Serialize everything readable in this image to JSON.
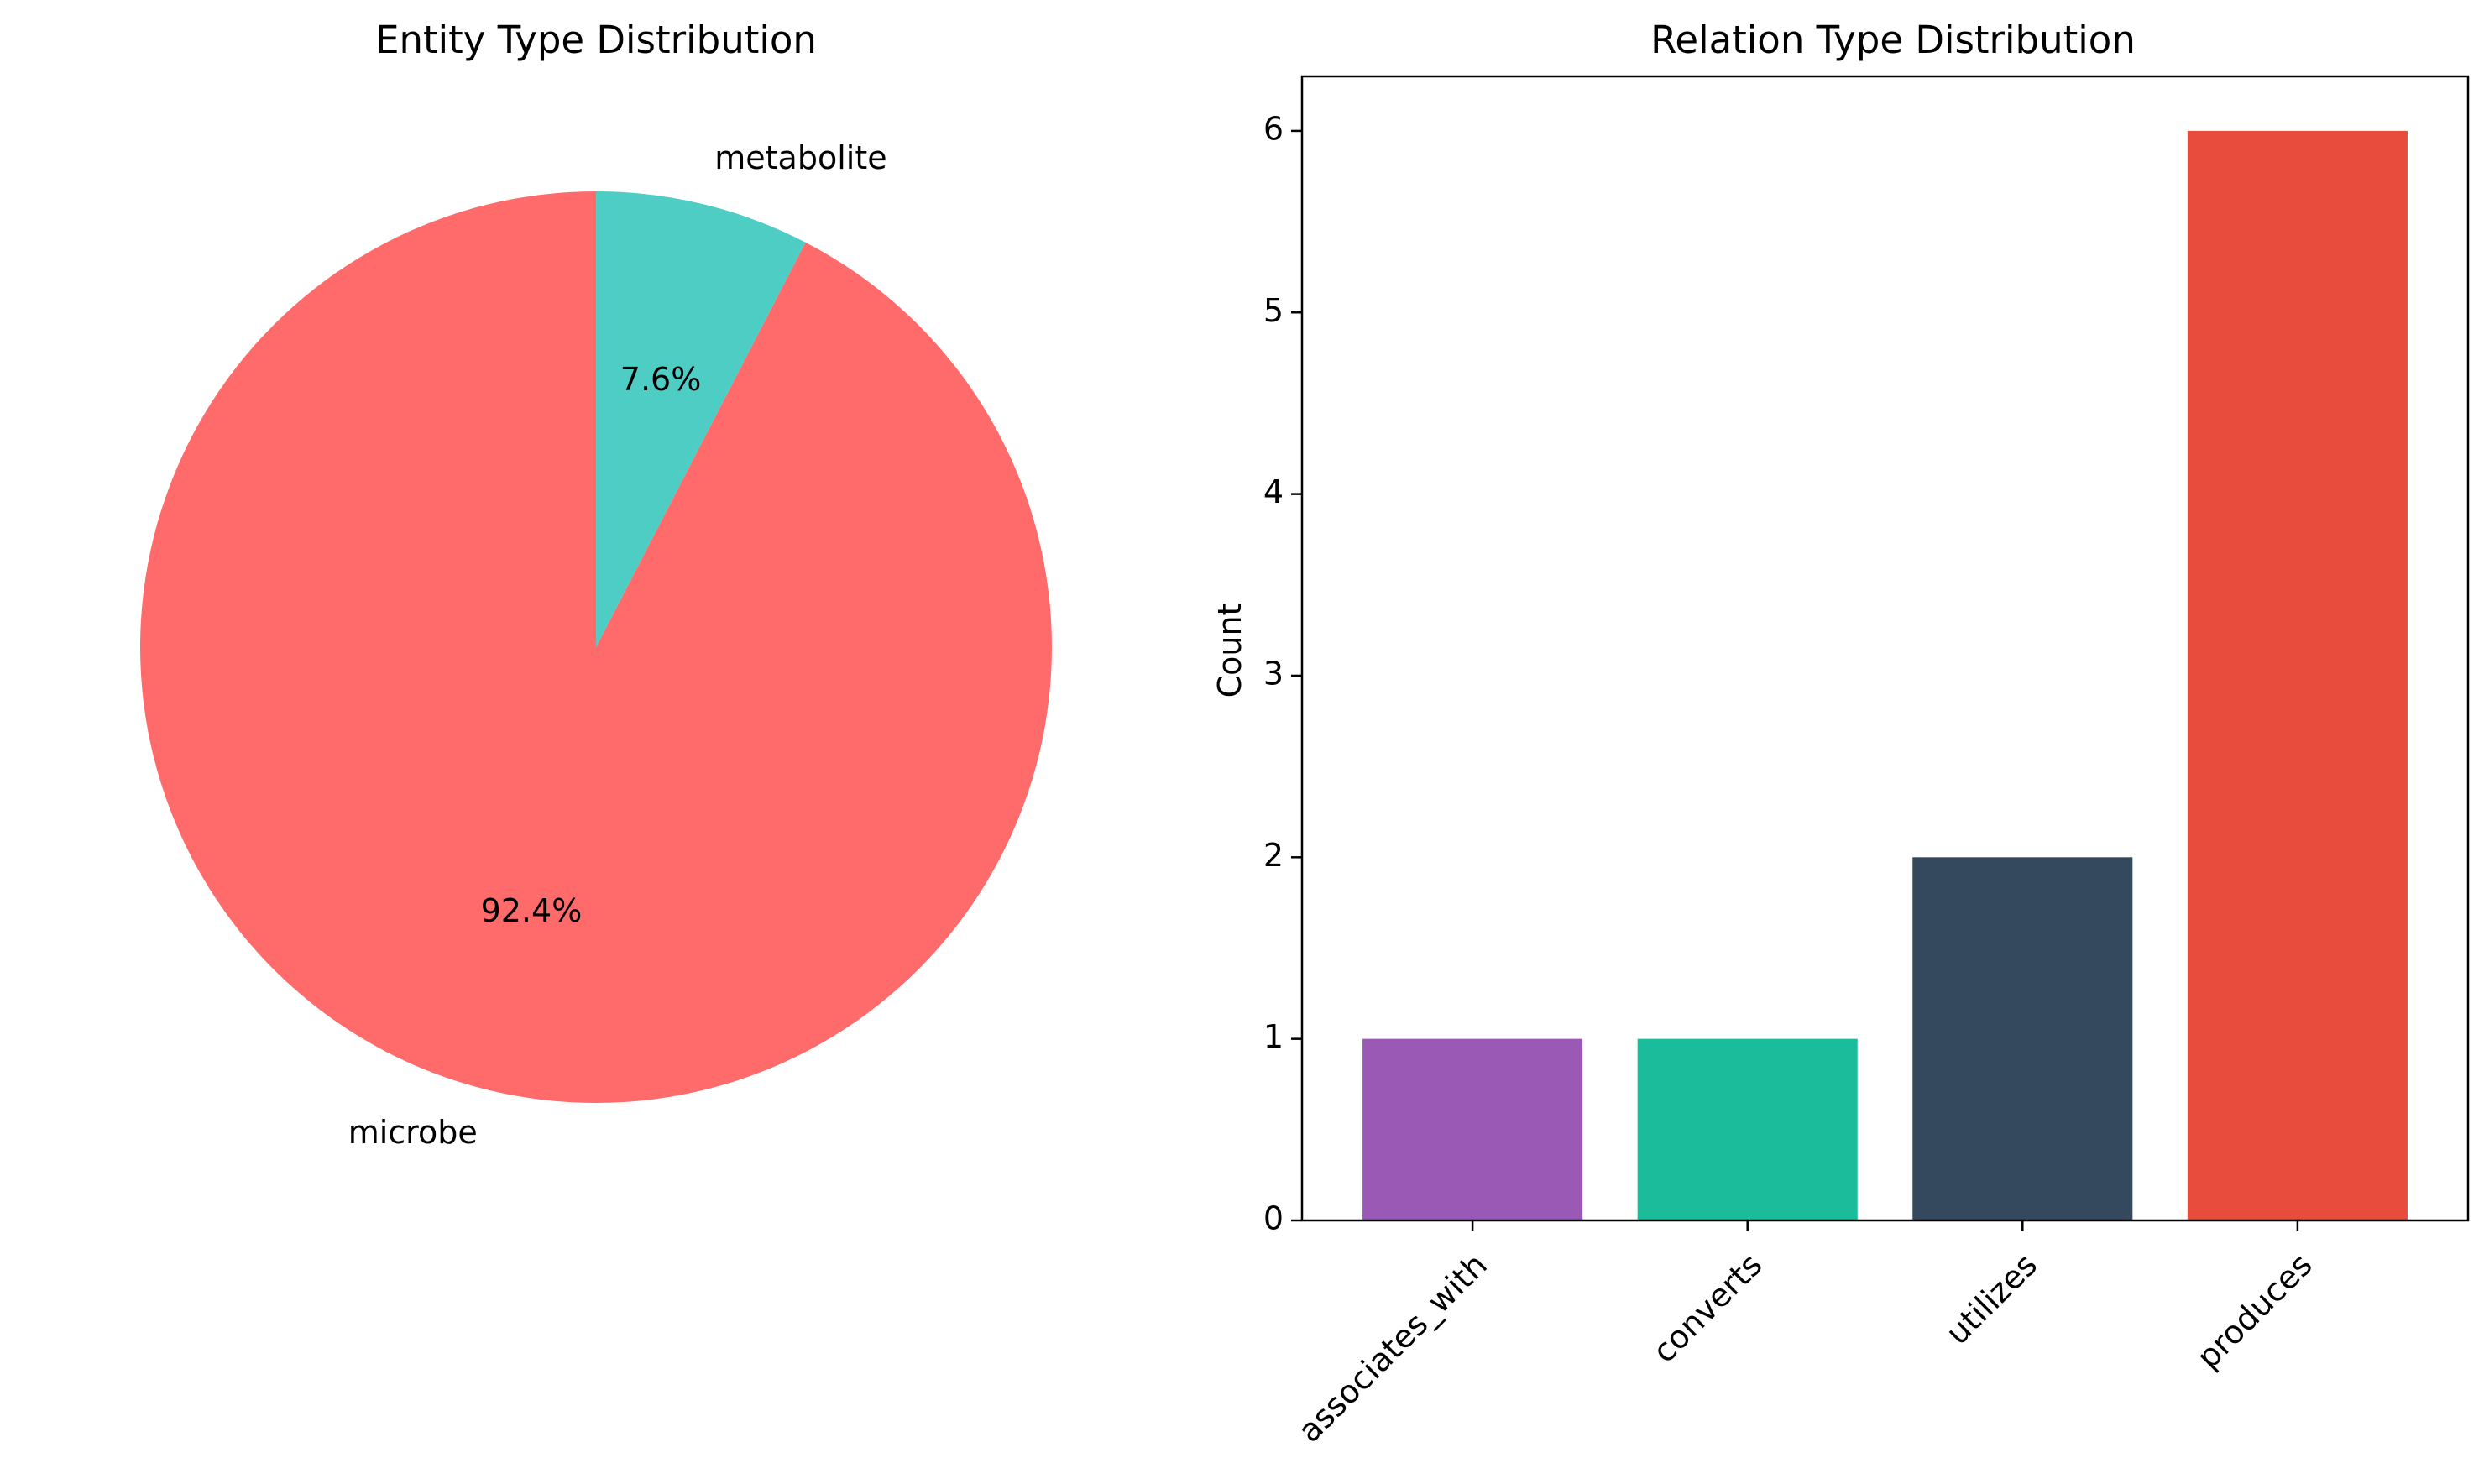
{
  "chart_data": [
    {
      "type": "pie",
      "title": "Entity Type Distribution",
      "labels": [
        "microbe",
        "metabolite"
      ],
      "values": [
        92.4,
        7.6
      ],
      "pct_labels": [
        "92.4%",
        "7.6%"
      ],
      "colors": [
        "#ff6b6b",
        "#4ecdc4"
      ]
    },
    {
      "type": "bar",
      "title": "Relation Type Distribution",
      "categories": [
        "associates_with",
        "converts",
        "utilizes",
        "produces"
      ],
      "values": [
        1,
        1,
        2,
        6
      ],
      "colors": [
        "#9b59b6",
        "#1abc9c",
        "#34495e",
        "#e74c3c"
      ],
      "xlabel": "",
      "ylabel": "Count",
      "ylim": [
        0,
        6.3
      ],
      "yticks": [
        0,
        1,
        2,
        3,
        4,
        5,
        6
      ],
      "grid": false
    }
  ]
}
